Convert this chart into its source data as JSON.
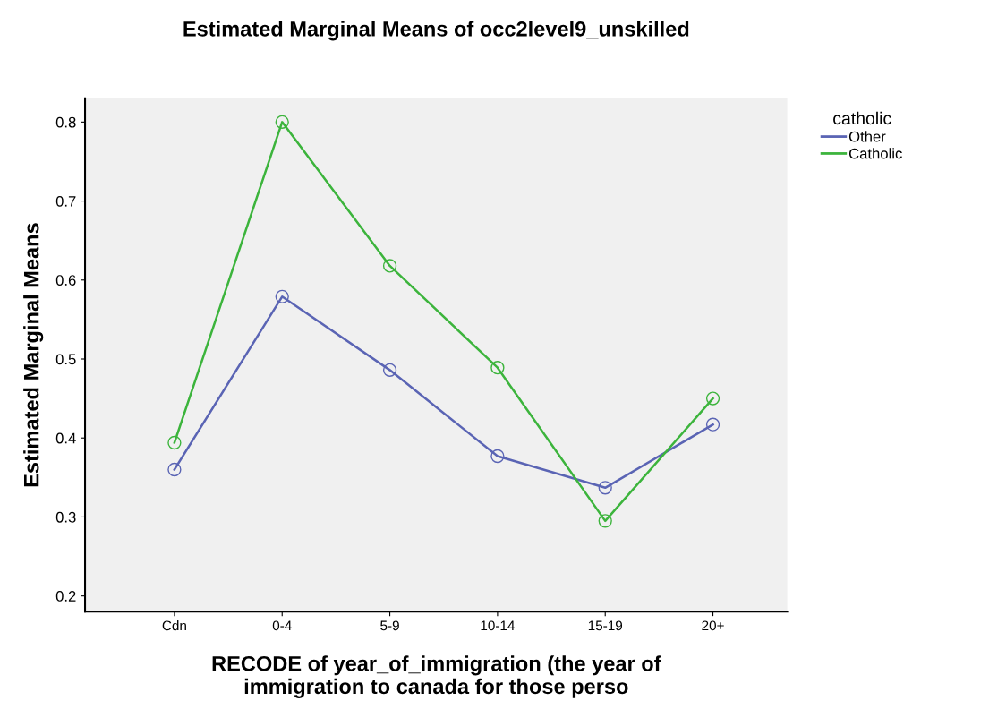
{
  "chart_data": {
    "type": "line",
    "title": "Estimated Marginal Means of occ2level9_unskilled",
    "xlabel": "RECODE of year_of_immigration (the year of\nimmigration to canada for those perso",
    "ylabel": "Estimated Marginal Means",
    "legend_title": "catholic",
    "categories": [
      "Cdn",
      "0-4",
      "5-9",
      "10-14",
      "15-19",
      "20+"
    ],
    "series": [
      {
        "name": "Other",
        "color": "#5a64b4",
        "values": [
          0.36,
          0.579,
          0.486,
          0.377,
          0.337,
          0.417
        ]
      },
      {
        "name": "Catholic",
        "color": "#3cb43c",
        "values": [
          0.394,
          0.8,
          0.618,
          0.489,
          0.295,
          0.45
        ]
      }
    ],
    "ylim": [
      0.18,
      0.83
    ],
    "yticks": [
      0.2,
      0.3,
      0.4,
      0.5,
      0.6,
      0.7,
      0.8
    ],
    "grid": false,
    "legend": "right",
    "marker": "circle",
    "line_style": "solid"
  }
}
